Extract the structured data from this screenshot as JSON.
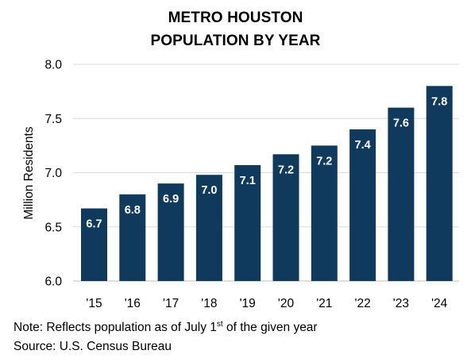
{
  "title": {
    "line1": "METRO HOUSTON",
    "line2": "POPULATION BY YEAR"
  },
  "notes": {
    "note_prefix": "Note: Reflects population as of July 1",
    "note_sup": "st",
    "note_suffix": " of the given year",
    "source": "Source: U.S. Census Bureau"
  },
  "colors": {
    "bar": "#0f3a5c",
    "grid": "#d9d9d9",
    "axis": "#bfbfbf",
    "label": "#ffffff"
  },
  "chart_data": {
    "type": "bar",
    "title": "METRO HOUSTON POPULATION BY YEAR",
    "xlabel": "",
    "ylabel": "Million Residents",
    "categories": [
      "'15",
      "'16",
      "'17",
      "'18",
      "'19",
      "'20",
      "'21",
      "'22",
      "'23",
      "'24"
    ],
    "values": [
      6.67,
      6.8,
      6.9,
      6.98,
      7.07,
      7.17,
      7.25,
      7.4,
      7.6,
      7.8
    ],
    "data_labels": [
      "6.7",
      "6.8",
      "6.9",
      "7.0",
      "7.1",
      "7.2",
      "7.2",
      "7.4",
      "7.6",
      "7.8"
    ],
    "ylim": [
      6.0,
      8.0
    ],
    "yticks": [
      "6.0",
      "6.5",
      "7.0",
      "7.5",
      "8.0"
    ],
    "ytick_values": [
      6.0,
      6.5,
      7.0,
      7.5,
      8.0
    ],
    "grid": true,
    "legend": "none"
  }
}
